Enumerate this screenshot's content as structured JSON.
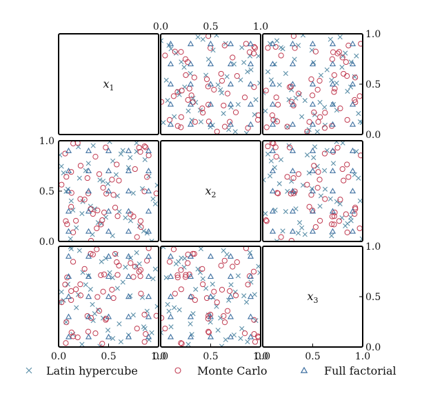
{
  "chart_data": {
    "type": "scatter",
    "layout": "3x3 scatter-plot matrix, diagonal panels show variable names",
    "variables": [
      {
        "name": "x",
        "sub": "1"
      },
      {
        "name": "x",
        "sub": "2"
      },
      {
        "name": "x",
        "sub": "3"
      }
    ],
    "axis_range": [
      0.0,
      1.0
    ],
    "tick_labels": [
      "0.0",
      "0.5",
      "1.0"
    ],
    "grid": false,
    "legend_position": "bottom",
    "colors": {
      "latin_hypercube": "#5b8fa8",
      "monte_carlo": "#c0394f",
      "full_factorial": "#3d6fa0"
    },
    "series": [
      {
        "name": "Latin hypercube",
        "marker": "x",
        "count": 50
      },
      {
        "name": "Monte Carlo",
        "marker": "circle",
        "count": 50
      },
      {
        "name": "Full factorial",
        "marker": "triangle",
        "levels": [
          0.1,
          0.3,
          0.5,
          0.7,
          0.9
        ]
      }
    ]
  }
}
